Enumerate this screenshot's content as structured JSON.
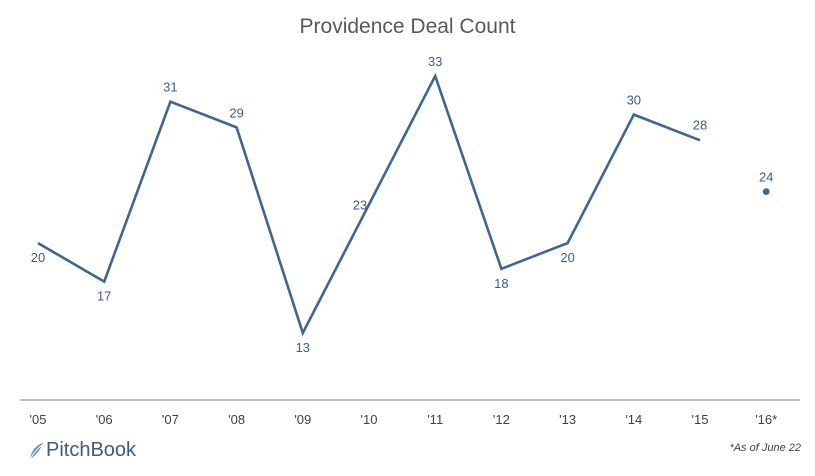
{
  "chart_data": {
    "type": "line",
    "title": "Providence Deal Count",
    "categories": [
      "'05",
      "'06",
      "'07",
      "'08",
      "'09",
      "'10",
      "'11",
      "'12",
      "'13",
      "'14",
      "'15",
      "'16*"
    ],
    "series": [
      {
        "values": [
          20,
          17,
          31,
          29,
          13,
          23,
          33,
          18,
          20,
          30,
          28,
          null
        ]
      },
      {
        "values": [
          null,
          null,
          null,
          null,
          null,
          null,
          null,
          null,
          null,
          null,
          null,
          24
        ]
      }
    ],
    "data_labels": [
      20,
      17,
      31,
      29,
      13,
      23,
      33,
      18,
      20,
      30,
      28,
      24
    ],
    "ylim": [
      3,
      35
    ],
    "grid": false,
    "legend": "none",
    "xlabel": "",
    "ylabel": "",
    "colors": {
      "series": "#3e6690",
      "labels": "#3a5f8a",
      "axis": "#808080"
    }
  },
  "footer": {
    "logo_text": "PitchBook",
    "logo_icon": "pitchbook-leaf-icon",
    "footnote": "*As of June 22"
  }
}
